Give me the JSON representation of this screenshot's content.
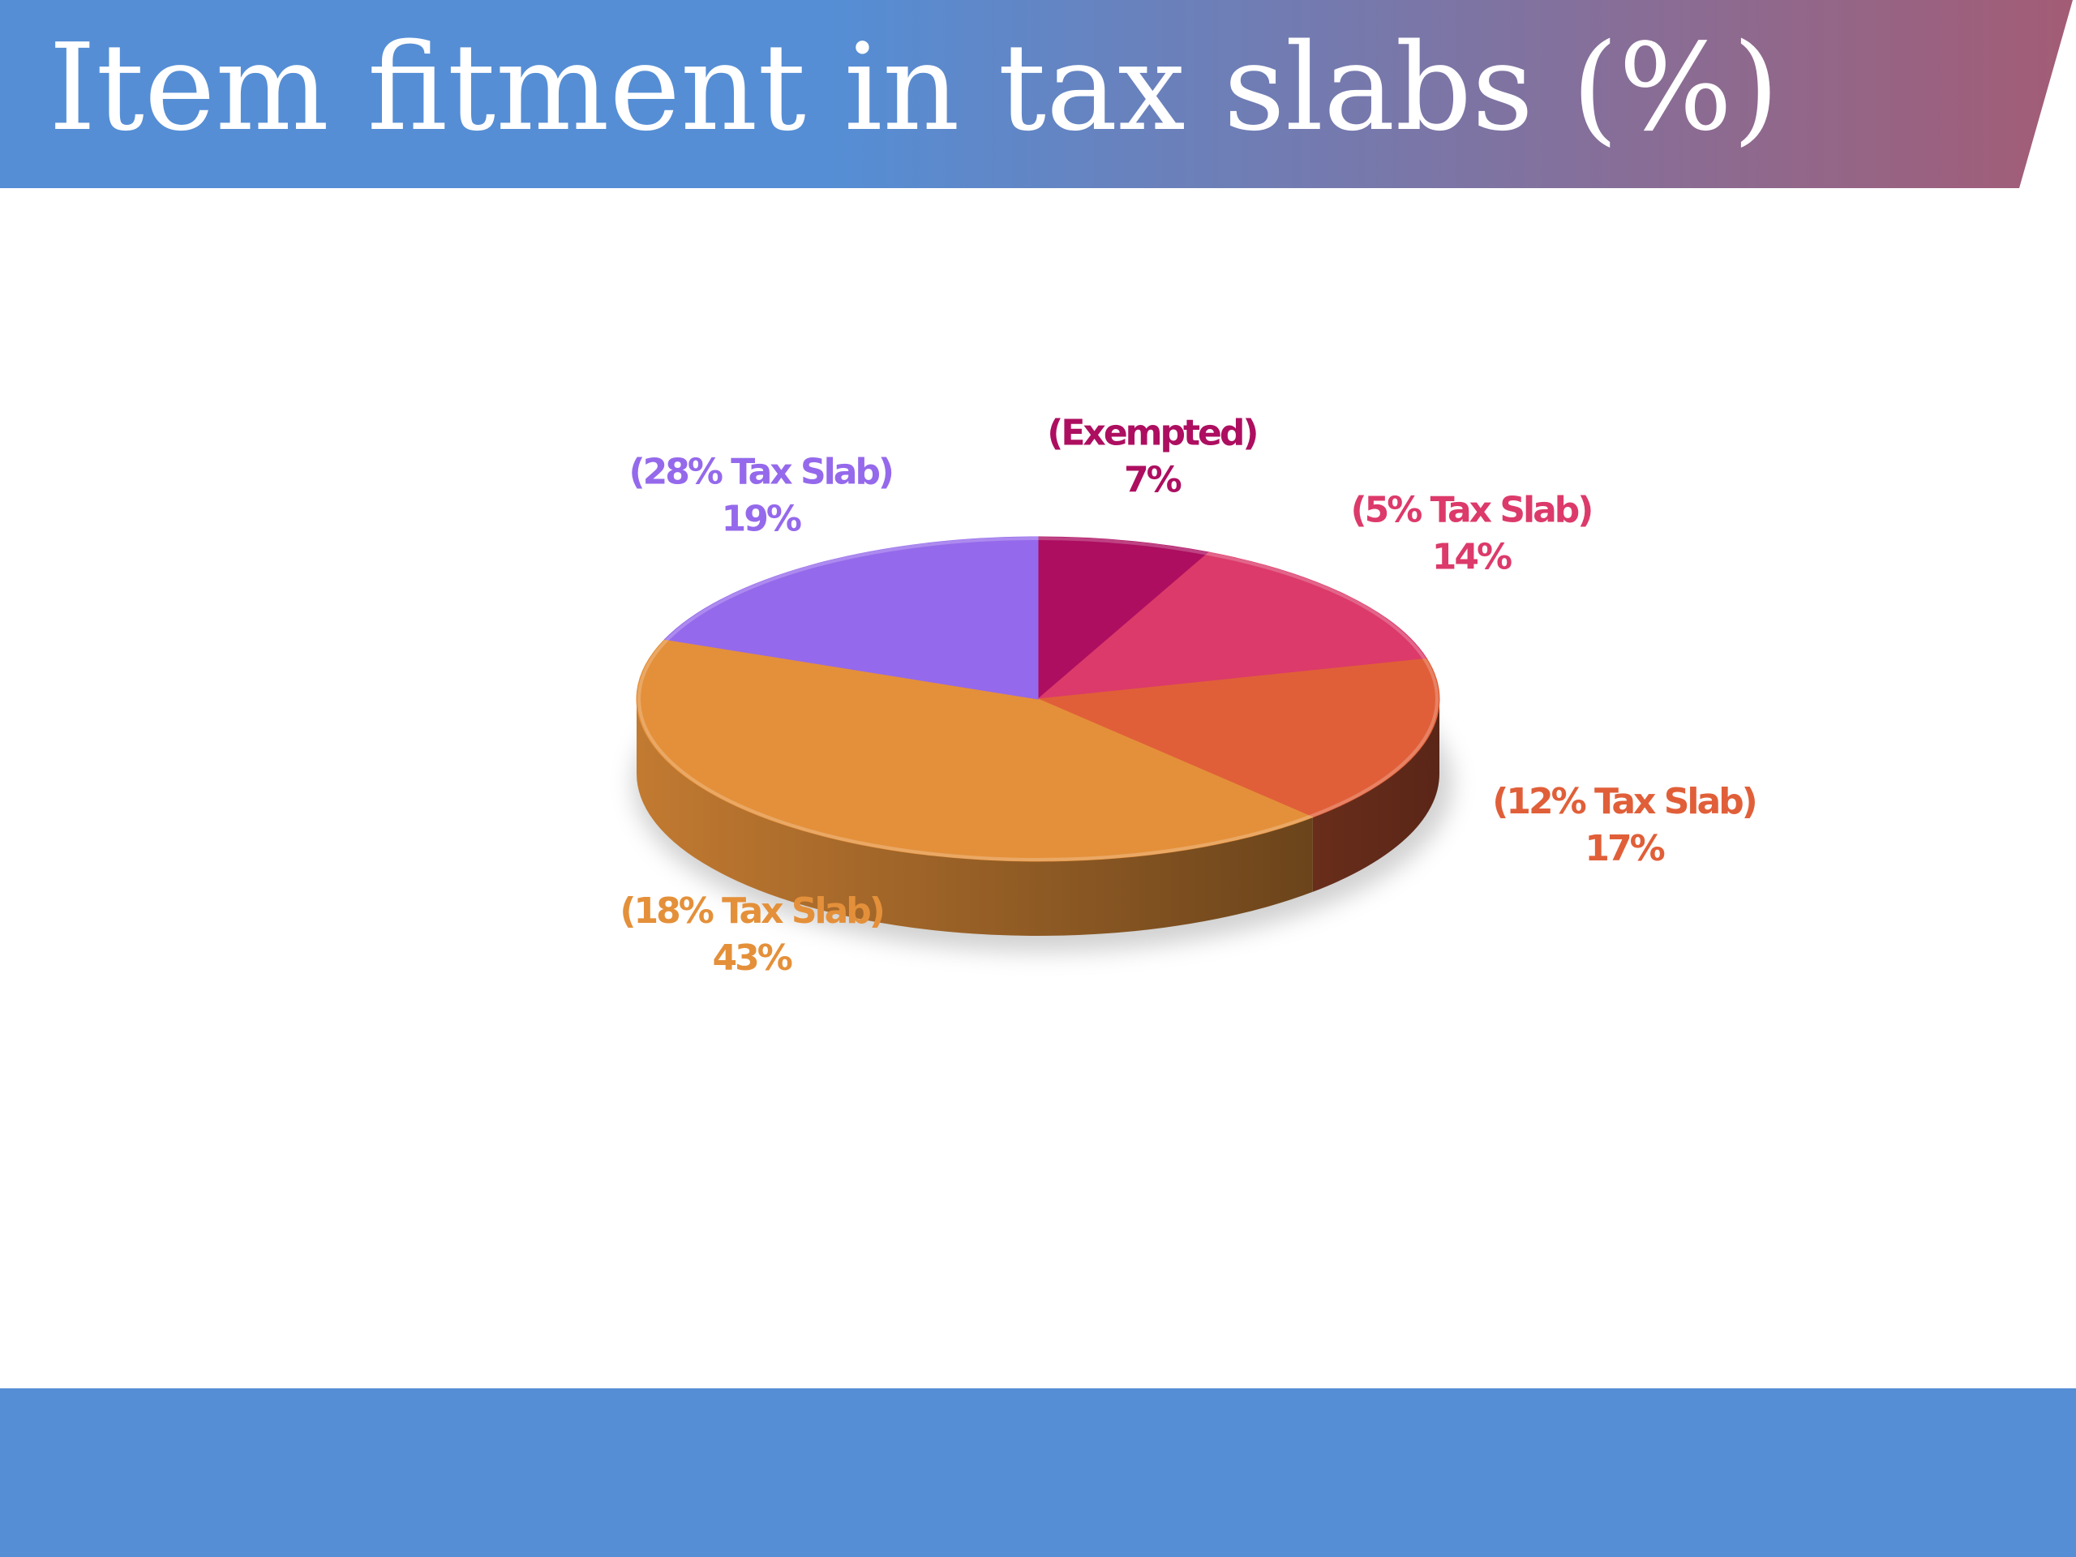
{
  "slide": {
    "title": "Item fitment in tax slabs (%)"
  },
  "colors": {
    "header_left": "#558ed5",
    "header_right": "#a35c75",
    "footer": "#558ed5"
  },
  "chart_data": {
    "type": "pie",
    "style": "3d",
    "title": "",
    "slices": [
      {
        "label": "(Exempted)",
        "value": 7,
        "value_label": "7%",
        "color": "#ad0e60"
      },
      {
        "label": "(5%  Tax Slab)",
        "value": 14,
        "value_label": "14%",
        "color": "#dc3a6a"
      },
      {
        "label": "(12% Tax Slab)",
        "value": 17,
        "value_label": "17%",
        "color": "#e05f39"
      },
      {
        "label": "(18% Tax Slab)",
        "value": 43,
        "value_label": "43%",
        "color": "#e4903a"
      },
      {
        "label": "(28% Tax Slab)",
        "value": 19,
        "value_label": "19%",
        "color": "#9569eb"
      }
    ]
  }
}
